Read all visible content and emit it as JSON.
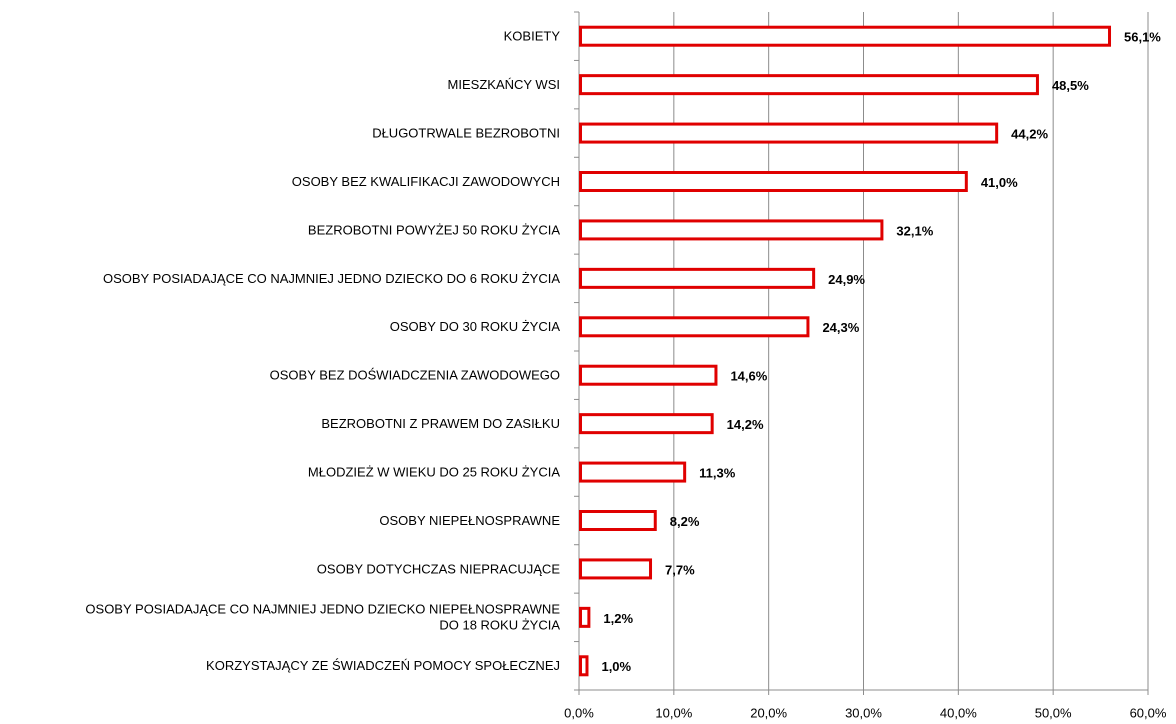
{
  "chart_data": {
    "type": "barh",
    "categories": [
      "KOBIETY",
      "MIESZKAŃCY WSI",
      "DŁUGOTRWALE BEZROBOTNI",
      "OSOBY BEZ KWALIFIKACJI ZAWODOWYCH",
      "BEZROBOTNI POWYŻEJ 50 ROKU ŻYCIA",
      "OSOBY POSIADAJĄCE CO NAJMNIEJ JEDNO DZIECKO DO 6 ROKU ŻYCIA",
      "OSOBY DO 30 ROKU ŻYCIA",
      "OSOBY BEZ DOŚWIADCZENIA ZAWODOWEGO",
      "BEZROBOTNI Z PRAWEM DO ZASIŁKU",
      "MŁODZIEŻ W WIEKU DO 25 ROKU ŻYCIA",
      "OSOBY NIEPEŁNOSPRAWNE",
      "OSOBY DOTYCHCZAS NIEPRACUJĄCE",
      "OSOBY POSIADAJĄCE CO NAJMNIEJ JEDNO DZIECKO NIEPEŁNOSPRAWNE\nDO 18 ROKU ŻYCIA",
      "KORZYSTAJĄCY ZE ŚWIADCZEŃ POMOCY SPOŁECZNEJ"
    ],
    "values": [
      56.1,
      48.5,
      44.2,
      41.0,
      32.1,
      24.9,
      24.3,
      14.6,
      14.2,
      11.3,
      8.2,
      7.7,
      1.2,
      1.0
    ],
    "value_labels": [
      "56,1%",
      "48,5%",
      "44,2%",
      "41,0%",
      "32,1%",
      "24,9%",
      "24,3%",
      "14,6%",
      "14,2%",
      "11,3%",
      "8,2%",
      "7,7%",
      "1,2%",
      "1,0%"
    ],
    "color": "#e00000",
    "xlim": [
      0,
      60
    ],
    "xticks": [
      {
        "value": 0,
        "label": "0,0%"
      },
      {
        "value": 10,
        "label": "10,0%"
      },
      {
        "value": 20,
        "label": "20,0%"
      },
      {
        "value": 30,
        "label": "30,0%"
      },
      {
        "value": 40,
        "label": "40,0%"
      },
      {
        "value": 50,
        "label": "50,0%"
      },
      {
        "value": 60,
        "label": "60,0%"
      }
    ],
    "grid": true
  }
}
